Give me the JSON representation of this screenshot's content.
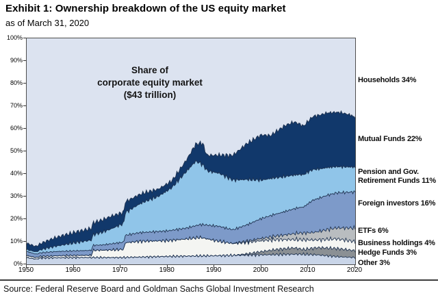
{
  "header": {
    "title": "Exhibit 1: Ownership breakdown of the US equity market",
    "subtitle": "as of March 31, 2020"
  },
  "source": "Source: Federal Reserve Board and Goldman Sachs Global Investment Research",
  "chart_data": {
    "type": "area",
    "stacked": true,
    "annotation": "Share of\ncorporate equity market\n($43 trillion)",
    "x_range": [
      1950,
      2020
    ],
    "y_range_pct": [
      0,
      100
    ],
    "x_ticks": [
      1950,
      1960,
      1970,
      1980,
      1990,
      2000,
      2010,
      2020
    ],
    "y_ticks_pct": [
      0,
      10,
      20,
      30,
      40,
      50,
      60,
      70,
      80,
      90,
      100
    ],
    "grid": false,
    "legend_position": "right-of-plot",
    "stroke_color": "#1e3250",
    "plot_background_is_top_series": true,
    "series": [
      {
        "name": "other",
        "label": "Other",
        "share_2020_pct": 3,
        "color": "#c9d5e8",
        "keyframes": [
          [
            1950,
            3
          ],
          [
            1952,
            2.3
          ],
          [
            1953,
            2.8
          ],
          [
            1960,
            3
          ],
          [
            1970,
            3
          ],
          [
            1980,
            3.5
          ],
          [
            1990,
            3.8
          ],
          [
            2000,
            4.2
          ],
          [
            2008,
            4.5
          ],
          [
            2012,
            4.2
          ],
          [
            2016,
            3.4
          ],
          [
            2020,
            3
          ]
        ]
      },
      {
        "name": "hedge_funds",
        "label": "Hedge Funds",
        "share_2020_pct": 3,
        "color": "#8b9094",
        "keyframes": [
          [
            1950,
            0
          ],
          [
            1994,
            0
          ],
          [
            1995,
            0.2
          ],
          [
            1998,
            0.8
          ],
          [
            2000,
            1.4
          ],
          [
            2003,
            2.2
          ],
          [
            2007,
            2.8
          ],
          [
            2009,
            2.1
          ],
          [
            2012,
            3.2
          ],
          [
            2016,
            3.6
          ],
          [
            2019,
            3.2
          ],
          [
            2020,
            3
          ]
        ]
      },
      {
        "name": "business_holdings",
        "label": "Business holdings",
        "share_2020_pct": 4,
        "color": "#f4f5f2",
        "keyframes": [
          [
            1950,
            0.9
          ],
          [
            1952,
            0.7
          ],
          [
            1958,
            0.9
          ],
          [
            1963.8,
            1
          ],
          [
            1964.1,
            3.2
          ],
          [
            1967,
            3.3
          ],
          [
            1970.7,
            3.6
          ],
          [
            1971,
            6.5
          ],
          [
            1974,
            7
          ],
          [
            1980,
            7
          ],
          [
            1984,
            7.6
          ],
          [
            1987,
            8.2
          ],
          [
            1990,
            6.8
          ],
          [
            1994,
            5.2
          ],
          [
            1999,
            5
          ],
          [
            2003,
            4.4
          ],
          [
            2007,
            3.7
          ],
          [
            2009,
            4.3
          ],
          [
            2012,
            3.4
          ],
          [
            2016,
            4.3
          ],
          [
            2020,
            4
          ]
        ]
      },
      {
        "name": "etfs",
        "label": "ETFs",
        "share_2020_pct": 6,
        "color": "#b9bdc0",
        "keyframes": [
          [
            1950,
            0
          ],
          [
            1993,
            0
          ],
          [
            1995,
            0.3
          ],
          [
            2000,
            1
          ],
          [
            2004,
            1.8
          ],
          [
            2008,
            2.9
          ],
          [
            2011,
            3.3
          ],
          [
            2014,
            4.3
          ],
          [
            2017,
            5.1
          ],
          [
            2020,
            6
          ]
        ]
      },
      {
        "name": "foreign_investors",
        "label": "Foreign investors",
        "share_2020_pct": 16,
        "color": "#7d9ac9",
        "keyframes": [
          [
            1950,
            1.8
          ],
          [
            1952,
            1.5
          ],
          [
            1956,
            1.9
          ],
          [
            1960,
            2
          ],
          [
            1966,
            2.3
          ],
          [
            1970,
            3.1
          ],
          [
            1974,
            3.8
          ],
          [
            1980,
            4.3
          ],
          [
            1984,
            4.8
          ],
          [
            1988,
            6
          ],
          [
            1991,
            6.6
          ],
          [
            1994,
            6
          ],
          [
            1997,
            7.2
          ],
          [
            2000,
            8.8
          ],
          [
            2004,
            10
          ],
          [
            2007,
            11
          ],
          [
            2009,
            11.5
          ],
          [
            2011,
            14.3
          ],
          [
            2014,
            15.2
          ],
          [
            2017,
            15.6
          ],
          [
            2020,
            16
          ]
        ]
      },
      {
        "name": "pension_gov_retirement",
        "label": "Pension and Gov. Retirement Funds",
        "share_2020_pct": 11,
        "color": "#90c5e9",
        "keyframes": [
          [
            1950,
            0.8
          ],
          [
            1952,
            1
          ],
          [
            1955,
            2
          ],
          [
            1960,
            3.5
          ],
          [
            1964,
            4.6
          ],
          [
            1968,
            6.6
          ],
          [
            1970.7,
            8.3
          ],
          [
            1971,
            10
          ],
          [
            1975,
            13.5
          ],
          [
            1978,
            15.5
          ],
          [
            1981,
            19
          ],
          [
            1984,
            25
          ],
          [
            1986,
            28.5
          ],
          [
            1987.5,
            26.5
          ],
          [
            1988.5,
            24
          ],
          [
            1991,
            23.5
          ],
          [
            1994,
            22
          ],
          [
            1997,
            20
          ],
          [
            2000,
            17
          ],
          [
            2004,
            15.8
          ],
          [
            2008,
            14.6
          ],
          [
            2010,
            14
          ],
          [
            2013,
            12.6
          ],
          [
            2016,
            11.6
          ],
          [
            2020,
            11
          ]
        ]
      },
      {
        "name": "mutual_funds",
        "label": "Mutual Funds",
        "share_2020_pct": 22,
        "color": "#11386b",
        "keyframes": [
          [
            1950,
            2.8
          ],
          [
            1952,
            2.4
          ],
          [
            1956,
            3.8
          ],
          [
            1960,
            4.6
          ],
          [
            1964,
            5.2
          ],
          [
            1968,
            5.6
          ],
          [
            1971,
            4.8
          ],
          [
            1975,
            4
          ],
          [
            1978,
            3.2
          ],
          [
            1981,
            3
          ],
          [
            1984,
            5
          ],
          [
            1986,
            7.5
          ],
          [
            1987.5,
            9.5
          ],
          [
            1988.3,
            6.8
          ],
          [
            1991,
            8
          ],
          [
            1994,
            11
          ],
          [
            1997,
            16
          ],
          [
            2000,
            20
          ],
          [
            2002,
            19
          ],
          [
            2005,
            22.5
          ],
          [
            2007,
            23.5
          ],
          [
            2009,
            21.5
          ],
          [
            2011,
            23.5
          ],
          [
            2014,
            24.2
          ],
          [
            2017,
            24
          ],
          [
            2019,
            23
          ],
          [
            2020,
            22
          ]
        ]
      },
      {
        "name": "households",
        "label": "Households",
        "share_2020_pct": 34,
        "color": "#dce3f0",
        "keyframes": null,
        "values": "remainder_to_100_pct"
      }
    ],
    "legend": [
      {
        "text": "Households 34%",
        "anchor_pct": 81
      },
      {
        "text": "Mutual Funds 22%",
        "anchor_pct": 55
      },
      {
        "text": "Pension and Gov.\nRetirement Funds 11%",
        "anchor_pct": 38.5
      },
      {
        "text": "Foreign investors 16%",
        "anchor_pct": 26.5
      },
      {
        "text": "ETFs 6%",
        "anchor_pct": 14.5
      },
      {
        "text": "Business holdings 4%",
        "anchor_pct": 9
      },
      {
        "text": "Hedge Funds 3%",
        "anchor_pct": 4.7
      },
      {
        "text": "Other 3%",
        "anchor_pct": 0.2
      }
    ]
  }
}
